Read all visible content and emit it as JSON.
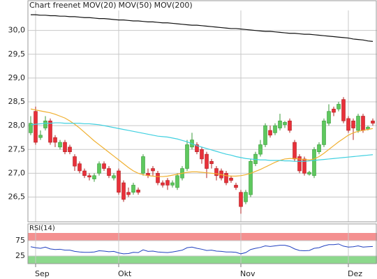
{
  "chart_data": [
    {
      "type": "candlestick",
      "title": "Chart freenet",
      "title_color": "#888888",
      "up_color": "#5ec85e",
      "up_edge": "#3a9a3a",
      "down_color": "#e8303a",
      "down_edge": "#b02020",
      "categories": [
        null,
        "Sep",
        null,
        null,
        null,
        null,
        null,
        null,
        null,
        null,
        null,
        null,
        null,
        null,
        null,
        null,
        null,
        null,
        "Okt",
        null,
        null,
        null,
        null,
        null,
        null,
        null,
        null,
        null,
        null,
        null,
        null,
        null,
        null,
        null,
        null,
        null,
        null,
        null,
        null,
        null,
        null,
        null,
        null,
        "Nov",
        null,
        null,
        null,
        null,
        null,
        null,
        null,
        null,
        null,
        null,
        null,
        null,
        null,
        null,
        null,
        null,
        null,
        null,
        null,
        null,
        null,
        "Dez",
        null,
        null,
        null,
        null,
        null
      ],
      "open": [
        27.85,
        28.3,
        27.75,
        27.95,
        28.1,
        27.75,
        27.55,
        27.65,
        27.55,
        27.35,
        27.2,
        27.05,
        26.95,
        26.88,
        27.0,
        27.2,
        27.1,
        26.9,
        27.05,
        26.8,
        26.6,
        26.6,
        26.65,
        27.0,
        27.0,
        27.1,
        27.0,
        26.8,
        26.85,
        26.75,
        26.7,
        26.9,
        27.1,
        27.55,
        27.6,
        27.5,
        27.4,
        27.25,
        27.1,
        27.05,
        27.0,
        26.9,
        26.75,
        26.6,
        26.4,
        26.55,
        27.2,
        27.4,
        27.6,
        27.9,
        27.85,
        27.95,
        28.02,
        28.1,
        27.65,
        27.35,
        27.3,
        26.98,
        26.95,
        27.45,
        27.6,
        28.05,
        28.35,
        28.35,
        28.55,
        28.15,
        28.1,
        27.9,
        28.2,
        27.93,
        28.1
      ],
      "high": [
        28.2,
        28.4,
        27.9,
        28.2,
        28.15,
        27.8,
        27.7,
        27.7,
        27.6,
        27.4,
        27.25,
        27.1,
        27.0,
        27.0,
        27.25,
        27.25,
        27.15,
        27.0,
        27.1,
        26.85,
        26.7,
        26.8,
        26.7,
        27.4,
        27.1,
        27.15,
        27.05,
        26.85,
        26.9,
        26.85,
        27.0,
        27.15,
        27.7,
        27.85,
        27.65,
        27.55,
        27.45,
        27.3,
        27.15,
        27.1,
        27.05,
        26.95,
        26.8,
        26.65,
        26.65,
        27.3,
        27.45,
        27.7,
        28.05,
        28.0,
        28.05,
        28.25,
        28.1,
        28.15,
        27.7,
        27.4,
        27.35,
        27.05,
        27.55,
        27.65,
        28.15,
        28.45,
        28.4,
        28.5,
        28.6,
        28.2,
        28.15,
        28.25,
        28.25,
        28.0,
        28.15
      ],
      "low": [
        27.8,
        27.6,
        27.7,
        27.9,
        27.6,
        27.55,
        27.5,
        27.4,
        27.4,
        27.05,
        27.0,
        26.9,
        26.85,
        26.82,
        26.95,
        27.05,
        26.9,
        26.85,
        26.55,
        26.4,
        26.5,
        26.55,
        26.55,
        26.95,
        26.9,
        26.95,
        26.75,
        26.7,
        26.65,
        26.7,
        26.65,
        26.85,
        27.05,
        27.5,
        27.4,
        27.2,
        26.9,
        27.1,
        26.85,
        26.85,
        26.75,
        26.8,
        26.65,
        26.15,
        26.35,
        26.5,
        27.15,
        27.35,
        27.55,
        27.75,
        27.8,
        27.9,
        27.95,
        27.85,
        27.25,
        27.0,
        26.95,
        26.95,
        26.9,
        27.4,
        27.55,
        28.0,
        28.2,
        28.3,
        28.05,
        27.85,
        27.7,
        27.85,
        27.85,
        27.9,
        28.0
      ],
      "close": [
        28.05,
        27.65,
        27.8,
        28.1,
        27.65,
        27.65,
        27.65,
        27.45,
        27.45,
        27.15,
        27.05,
        26.95,
        26.92,
        26.95,
        27.2,
        27.1,
        26.95,
        26.95,
        26.6,
        26.45,
        26.55,
        26.75,
        26.6,
        27.35,
        26.95,
        27.05,
        26.8,
        26.75,
        26.75,
        26.8,
        26.95,
        27.1,
        27.6,
        27.7,
        27.45,
        27.3,
        27.1,
        27.2,
        26.95,
        26.9,
        26.8,
        26.85,
        26.7,
        26.3,
        26.6,
        27.25,
        27.4,
        27.6,
        28.0,
        27.8,
        28.0,
        28.1,
        28.07,
        27.9,
        27.3,
        27.05,
        27.0,
        27.02,
        27.5,
        27.6,
        28.1,
        28.3,
        28.28,
        28.45,
        28.1,
        27.9,
        27.95,
        28.2,
        27.9,
        27.97,
        28.05
      ],
      "series": [
        {
          "name": "MOV(20)",
          "color": "#f0b030",
          "values": [
            28.35,
            28.33,
            28.31,
            28.29,
            28.27,
            28.24,
            28.2,
            28.16,
            28.1,
            28.03,
            27.95,
            27.86,
            27.77,
            27.68,
            27.6,
            27.52,
            27.44,
            27.36,
            27.28,
            27.2,
            27.12,
            27.05,
            27.0,
            26.97,
            26.95,
            26.94,
            26.93,
            26.93,
            26.94,
            26.96,
            26.98,
            27.0,
            27.02,
            27.03,
            27.03,
            27.02,
            27.01,
            27.0,
            26.99,
            26.97,
            26.95,
            26.94,
            26.94,
            26.95,
            26.97,
            27.0,
            27.04,
            27.08,
            27.13,
            27.18,
            27.23,
            27.27,
            27.3,
            27.31,
            27.31,
            27.3,
            27.29,
            27.28,
            27.3,
            27.35,
            27.42,
            27.5,
            27.58,
            27.66,
            27.73,
            27.8,
            27.85,
            27.88,
            27.9,
            27.92,
            27.94
          ]
        },
        {
          "name": "MOV(50)",
          "color": "#40d0e0",
          "values": [
            28.02,
            28.03,
            28.04,
            28.05,
            28.05,
            28.06,
            28.06,
            28.05,
            28.05,
            28.05,
            28.05,
            28.04,
            28.04,
            28.03,
            28.02,
            28.0,
            27.98,
            27.96,
            27.94,
            27.92,
            27.9,
            27.88,
            27.86,
            27.84,
            27.82,
            27.8,
            27.78,
            27.77,
            27.76,
            27.74,
            27.72,
            27.69,
            27.66,
            27.62,
            27.58,
            27.55,
            27.52,
            27.49,
            27.46,
            27.43,
            27.4,
            27.38,
            27.35,
            27.33,
            27.31,
            27.3,
            27.29,
            27.28,
            27.28,
            27.27,
            27.27,
            27.27,
            27.26,
            27.26,
            27.25,
            27.25,
            27.25,
            27.26,
            27.27,
            27.28,
            27.29,
            27.3,
            27.31,
            27.32,
            27.33,
            27.34,
            27.35,
            27.36,
            27.37,
            27.38,
            27.39
          ]
        },
        {
          "name": "MOV(200)",
          "color": "#111111",
          "values": [
            30.33,
            30.33,
            30.32,
            30.32,
            30.31,
            30.31,
            30.3,
            30.3,
            30.29,
            30.29,
            30.28,
            30.27,
            30.27,
            30.26,
            30.25,
            30.25,
            30.24,
            30.23,
            30.22,
            30.22,
            30.21,
            30.2,
            30.2,
            30.19,
            30.18,
            30.18,
            30.17,
            30.16,
            30.16,
            30.15,
            30.14,
            30.13,
            30.12,
            30.11,
            30.11,
            30.1,
            30.09,
            30.08,
            30.07,
            30.06,
            30.05,
            30.04,
            30.04,
            30.03,
            30.02,
            30.01,
            30.0,
            29.99,
            29.98,
            29.98,
            29.97,
            29.96,
            29.95,
            29.94,
            29.94,
            29.93,
            29.92,
            29.92,
            29.91,
            29.9,
            29.89,
            29.88,
            29.87,
            29.86,
            29.85,
            29.84,
            29.82,
            29.81,
            29.8,
            29.78,
            29.77
          ]
        }
      ],
      "ylim": [
        25.98,
        30.42
      ],
      "yticks": [
        {
          "value": 26.5,
          "label": "26,5"
        },
        {
          "value": 27,
          "label": "27,0"
        },
        {
          "value": 27.5,
          "label": "27,5"
        },
        {
          "value": 28,
          "label": "28,0"
        },
        {
          "value": 28.5,
          "label": "28,5"
        },
        {
          "value": 29,
          "label": "29,0"
        },
        {
          "value": 29.5,
          "label": "29,5"
        },
        {
          "value": 30,
          "label": "30,0"
        }
      ],
      "grid": true
    },
    {
      "type": "line",
      "title": "RSI(14)",
      "title_color": "#222222",
      "color": "#2040c0",
      "upper_band_color": "#f49090",
      "lower_band_color": "#8cd88c",
      "values": [
        55,
        52,
        50,
        54,
        48,
        46,
        47,
        44,
        44,
        40,
        38,
        37,
        37,
        38,
        42,
        41,
        39,
        40,
        35,
        32,
        33,
        37,
        36,
        45,
        40,
        41,
        38,
        37,
        36,
        38,
        41,
        44,
        52,
        54,
        50,
        47,
        43,
        44,
        41,
        40,
        38,
        38,
        37,
        32,
        36,
        46,
        50,
        53,
        58,
        56,
        58,
        60,
        60,
        56,
        48,
        43,
        42,
        43,
        50,
        52,
        58,
        62,
        62,
        64,
        57,
        54,
        55,
        58,
        54,
        55,
        56
      ],
      "ylim": [
        0,
        100
      ],
      "yticks": [
        25,
        75
      ],
      "grid": true
    }
  ]
}
